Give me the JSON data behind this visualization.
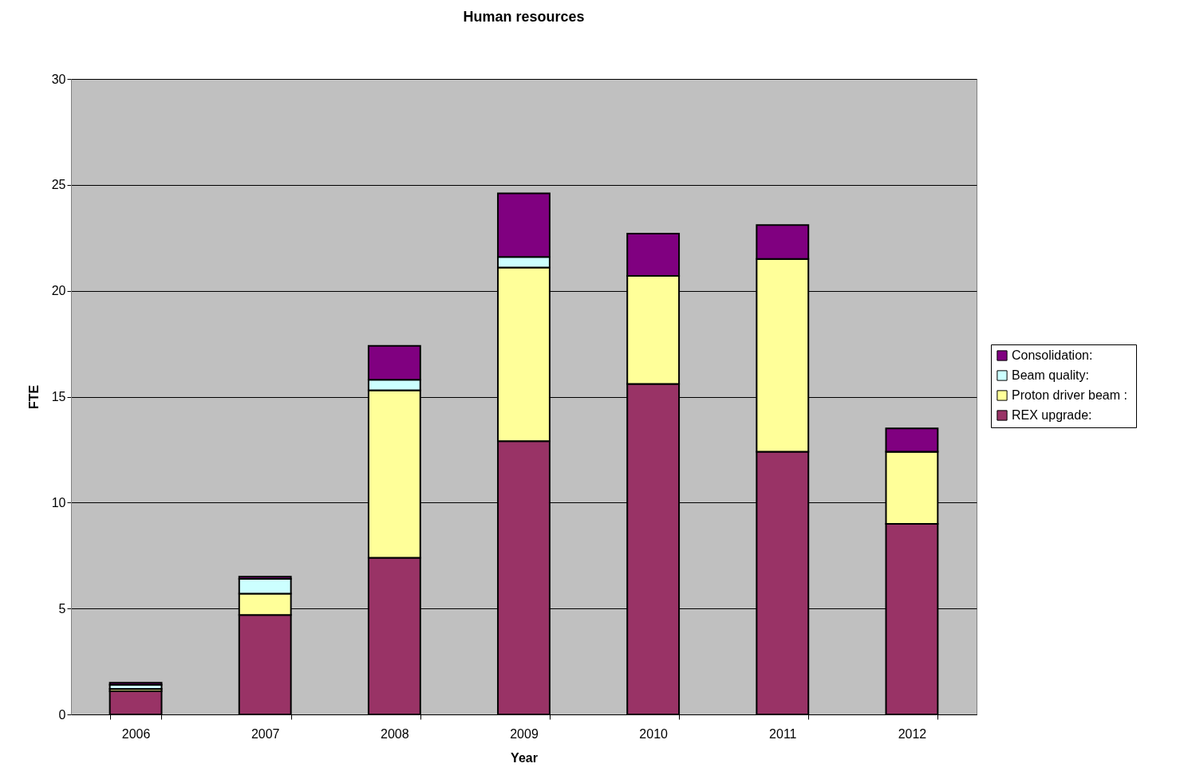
{
  "chart_data": {
    "type": "bar",
    "title": "Human resources",
    "xlabel": "Year",
    "ylabel": "FTE",
    "categories": [
      "2006",
      "2007",
      "2008",
      "2009",
      "2010",
      "2011",
      "2012"
    ],
    "stacked": true,
    "series": [
      {
        "name": "REX upgrade:",
        "color": "#993366",
        "values": [
          1.1,
          4.7,
          7.4,
          12.9,
          15.6,
          12.4,
          9.0
        ]
      },
      {
        "name": "Proton driver beam  :",
        "color": "#ffff99",
        "values": [
          0.1,
          1.0,
          7.9,
          8.2,
          5.1,
          9.1,
          3.4
        ]
      },
      {
        "name": "Beam quality:",
        "color": "#ccffff",
        "values": [
          0.2,
          0.7,
          0.5,
          0.5,
          0,
          0,
          0
        ]
      },
      {
        "name": "Consolidation:",
        "color": "#800080",
        "values": [
          0.1,
          0.1,
          1.6,
          3.0,
          2.0,
          1.6,
          1.1
        ]
      }
    ],
    "ylim": [
      0,
      30
    ],
    "yticks": [
      0,
      5,
      10,
      15,
      20,
      25,
      30
    ],
    "grid": "y",
    "legend": "right"
  }
}
